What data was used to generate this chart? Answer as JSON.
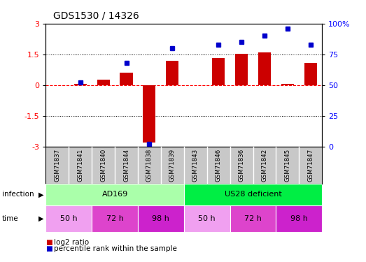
{
  "title": "GDS1530 / 14326",
  "samples": [
    "GSM71837",
    "GSM71841",
    "GSM71840",
    "GSM71844",
    "GSM71838",
    "GSM71839",
    "GSM71843",
    "GSM71846",
    "GSM71836",
    "GSM71842",
    "GSM71845",
    "GSM71847"
  ],
  "log2_ratio": [
    0.0,
    0.05,
    0.28,
    0.62,
    -2.8,
    1.18,
    0.0,
    1.32,
    1.52,
    1.58,
    0.05,
    1.08
  ],
  "percentile_rank": [
    null,
    52,
    null,
    68,
    2,
    80,
    null,
    83,
    85,
    90,
    96,
    83
  ],
  "bar_color": "#cc0000",
  "dot_color": "#0000cc",
  "infection_groups": [
    {
      "label": "AD169",
      "start": 0,
      "end": 6,
      "color": "#aaffaa"
    },
    {
      "label": "US28 deficient",
      "start": 6,
      "end": 12,
      "color": "#00ee44"
    }
  ],
  "time_groups": [
    {
      "label": "50 h",
      "start": 0,
      "end": 2,
      "color": "#f0a0f0"
    },
    {
      "label": "72 h",
      "start": 2,
      "end": 4,
      "color": "#dd44cc"
    },
    {
      "label": "98 h",
      "start": 4,
      "end": 6,
      "color": "#cc22cc"
    },
    {
      "label": "50 h",
      "start": 6,
      "end": 8,
      "color": "#f0a0f0"
    },
    {
      "label": "72 h",
      "start": 8,
      "end": 10,
      "color": "#dd44cc"
    },
    {
      "label": "98 h",
      "start": 10,
      "end": 12,
      "color": "#cc22cc"
    }
  ],
  "ylim_left": [
    -3,
    3
  ],
  "ylim_right": [
    0,
    100
  ],
  "yticks_left": [
    -3,
    -1.5,
    0,
    1.5,
    3
  ],
  "yticks_right": [
    0,
    25,
    50,
    75,
    100
  ],
  "yticklabels_right": [
    "0",
    "25",
    "50",
    "75",
    "100%"
  ],
  "hlines_dotted": [
    -1.5,
    1.5
  ],
  "hline_dashed": 0,
  "legend_items": [
    {
      "label": "log2 ratio",
      "color": "#cc0000"
    },
    {
      "label": "percentile rank within the sample",
      "color": "#0000cc"
    }
  ],
  "sample_bg": "#c8c8c8",
  "chart_bg": "#ffffff",
  "fig_bg": "#ffffff"
}
